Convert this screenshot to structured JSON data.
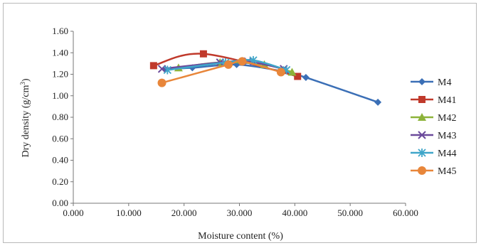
{
  "chart_data": {
    "type": "line",
    "title": "",
    "xlabel": "Moisture content (%)",
    "ylabel_main": "Dry density (g/cm",
    "ylabel_sup": "3",
    "ylabel_close": ")",
    "xlim": [
      0,
      60
    ],
    "ylim": [
      0,
      1.6
    ],
    "x_ticks": [
      0,
      10,
      20,
      30,
      40,
      50,
      60
    ],
    "x_tick_labels": [
      "0.000",
      "10.000",
      "20.000",
      "30.000",
      "40.000",
      "50.000",
      "60.000"
    ],
    "y_ticks": [
      0,
      0.2,
      0.4,
      0.6,
      0.8,
      1.0,
      1.2,
      1.4,
      1.6
    ],
    "y_tick_labels": [
      "0.00",
      "0.20",
      "0.40",
      "0.60",
      "0.80",
      "1.00",
      "1.20",
      "1.40",
      "1.60"
    ],
    "grid": false,
    "legend_position": "right",
    "series": [
      {
        "name": "M4",
        "color": "#3b6fb6",
        "marker": "diamond",
        "x": [
          16.5,
          21.5,
          29.5,
          37.5,
          42.0,
          55.0
        ],
        "y": [
          1.25,
          1.26,
          1.29,
          1.23,
          1.17,
          0.94
        ]
      },
      {
        "name": "M41",
        "color": "#c0392b",
        "marker": "square",
        "x": [
          14.5,
          23.5,
          40.5
        ],
        "y": [
          1.28,
          1.39,
          1.18
        ]
      },
      {
        "name": "M42",
        "color": "#8db33a",
        "marker": "triangle",
        "x": [
          19.0,
          26.5,
          34.5,
          39.5
        ],
        "y": [
          1.26,
          1.31,
          1.29,
          1.22
        ]
      },
      {
        "name": "M43",
        "color": "#6b4a9b",
        "marker": "x",
        "x": [
          16.0,
          26.5,
          31.5,
          38.0
        ],
        "y": [
          1.25,
          1.31,
          1.32,
          1.25
        ]
      },
      {
        "name": "M44",
        "color": "#3fa6c9",
        "marker": "star",
        "x": [
          17.0,
          27.5,
          32.5,
          38.5
        ],
        "y": [
          1.24,
          1.31,
          1.33,
          1.24
        ]
      },
      {
        "name": "M45",
        "color": "#e8863a",
        "marker": "circle",
        "x": [
          16.0,
          28.0,
          30.5,
          37.5
        ],
        "y": [
          1.12,
          1.29,
          1.32,
          1.22
        ]
      }
    ]
  }
}
